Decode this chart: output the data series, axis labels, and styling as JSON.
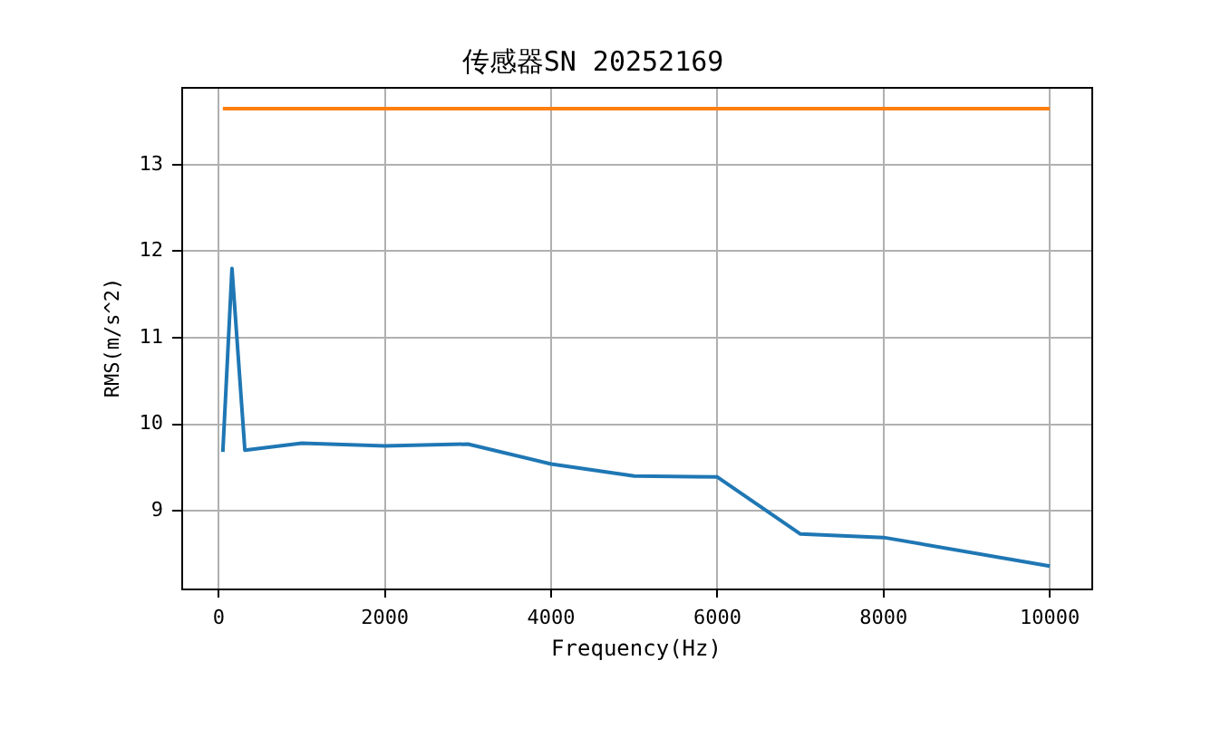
{
  "chart_data": {
    "type": "line",
    "title": "传感器SN 20252169",
    "xlabel": "Frequency(Hz)",
    "ylabel": "RMS(m/s^2)",
    "series": [
      {
        "color": "#1f77b4",
        "x": [
          50,
          160,
          315,
          1000,
          2000,
          3000,
          4000,
          5000,
          6000,
          7000,
          8000,
          10000
        ],
        "values": [
          9.68,
          11.8,
          9.7,
          9.78,
          9.75,
          9.77,
          9.54,
          9.4,
          9.39,
          8.73,
          8.69,
          8.36
        ]
      },
      {
        "color": "#ff7f0e",
        "x": [
          50,
          10000
        ],
        "values": [
          13.65,
          13.65
        ]
      }
    ],
    "xlim": [
      -450,
      10500
    ],
    "ylim": [
      8.1,
      13.9
    ],
    "xticks": [
      0,
      2000,
      4000,
      6000,
      8000,
      10000
    ],
    "yticks": [
      9,
      10,
      11,
      12,
      13
    ],
    "grid": true
  }
}
